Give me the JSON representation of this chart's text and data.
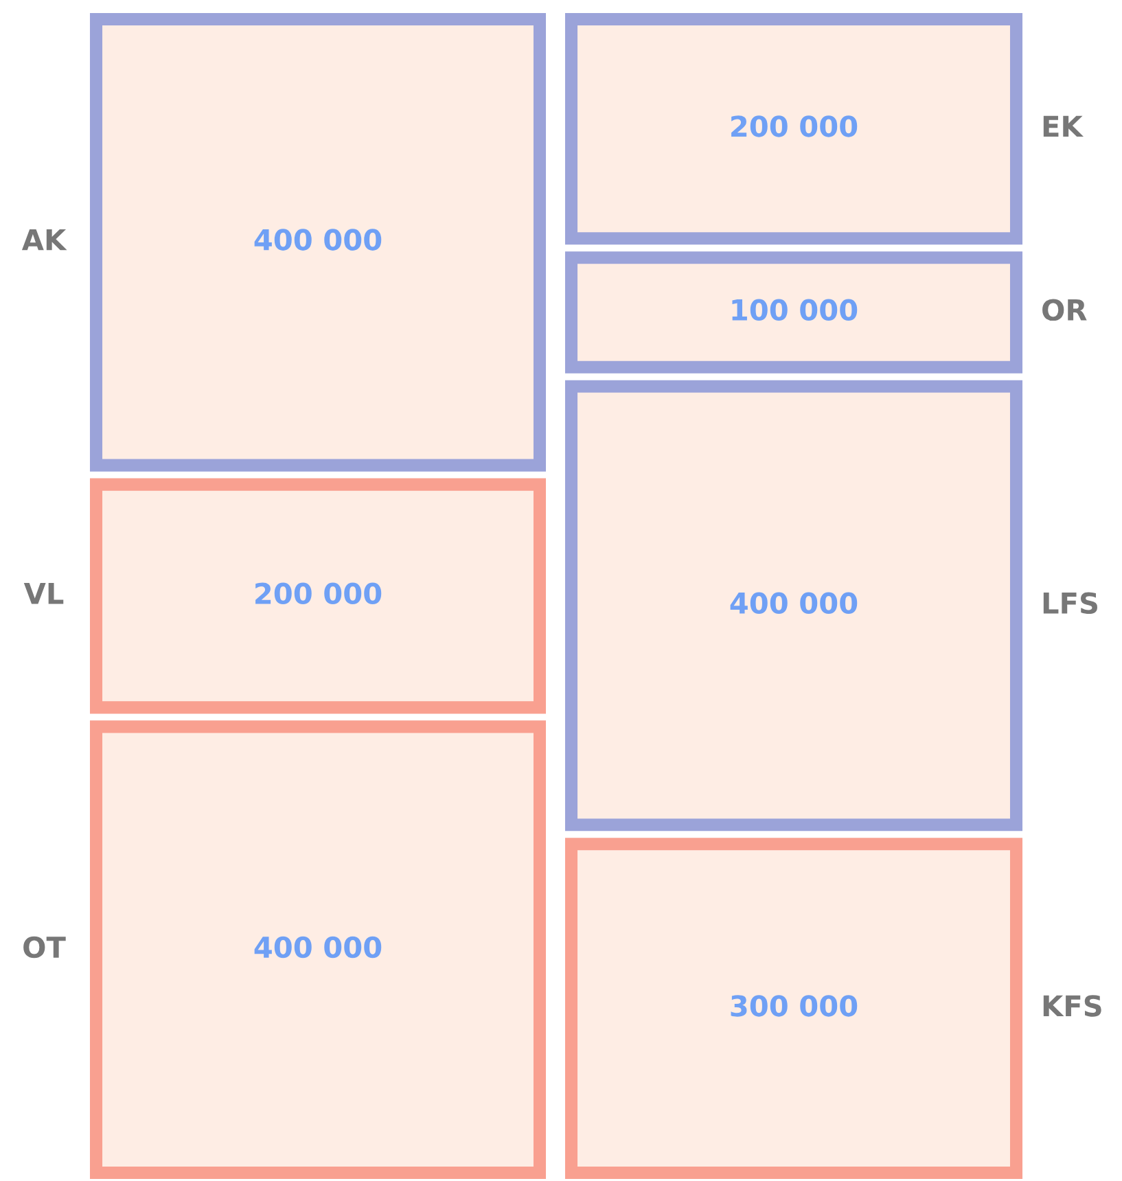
{
  "chart_data": {
    "type": "other",
    "categories": [
      "AK",
      "VL",
      "OT",
      "EK",
      "OR",
      "LFS",
      "KFS"
    ],
    "values": [
      400000,
      200000,
      400000,
      200000,
      100000,
      400000,
      300000
    ],
    "colors": [
      "#9ba3d9",
      "#f9a090",
      "#f9a090",
      "#9ba3d9",
      "#9ba3d9",
      "#9ba3d9",
      "#f9a090"
    ],
    "data_labels": true
  }
}
